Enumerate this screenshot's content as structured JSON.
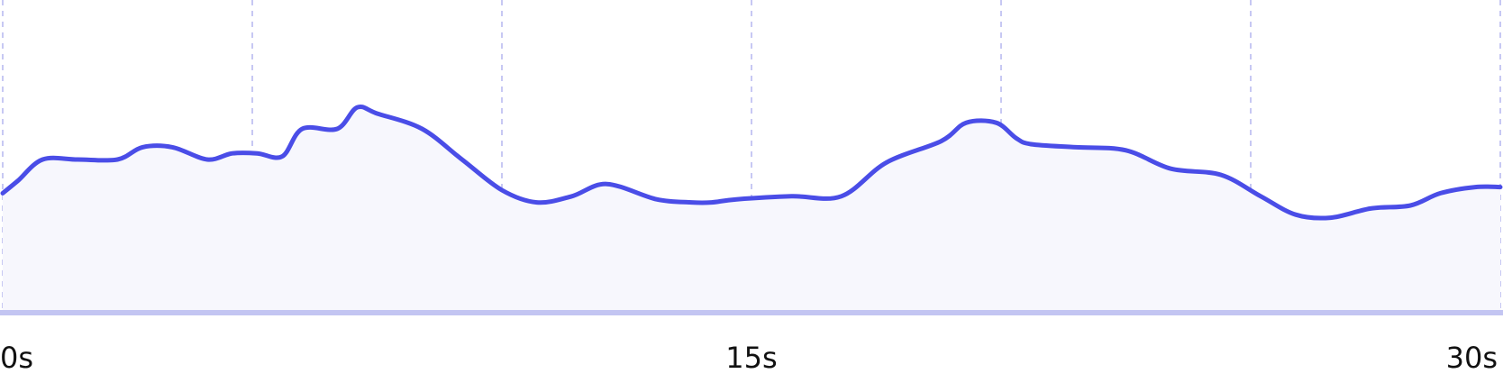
{
  "chart_data": {
    "type": "area",
    "title": "",
    "xlabel": "",
    "ylabel": "",
    "x_unit": "s",
    "xlim": [
      0,
      30
    ],
    "ylim": [
      0,
      100
    ],
    "x_ticks": [
      {
        "value": 0,
        "label": "0s"
      },
      {
        "value": 15,
        "label": "15s"
      },
      {
        "value": 30,
        "label": "30s"
      }
    ],
    "grid_x": [
      0,
      5,
      10,
      15,
      20,
      25,
      30
    ],
    "grid_style": "dashed vertical",
    "legend": "none",
    "series": [
      {
        "color": "#4a4de7",
        "fill": "#f7f7fd",
        "x": [
          0,
          0.3,
          0.8,
          1.5,
          2.3,
          2.8,
          3.4,
          4.1,
          4.6,
          5.1,
          5.6,
          6.0,
          6.7,
          7.1,
          7.5,
          8.4,
          9.2,
          10.0,
          10.7,
          11.4,
          12.1,
          13.1,
          13.8,
          14.2,
          14.7,
          15.8,
          16.8,
          17.7,
          18.8,
          19.3,
          19.9,
          20.3,
          20.6,
          21.5,
          22.5,
          23.4,
          24.4,
          25.2,
          25.9,
          26.6,
          27.4,
          28.2,
          28.8,
          29.5,
          30.0
        ],
        "y": [
          39,
          43,
          50,
          50,
          50,
          54,
          54,
          50,
          52,
          52,
          51,
          60,
          60,
          67,
          65,
          60,
          50,
          40,
          36,
          38,
          42,
          37,
          36,
          36,
          37,
          38,
          38,
          49,
          56,
          62,
          62,
          57,
          55,
          54,
          53,
          47,
          45,
          38,
          32,
          31,
          34,
          35,
          39,
          41,
          41
        ]
      }
    ]
  }
}
